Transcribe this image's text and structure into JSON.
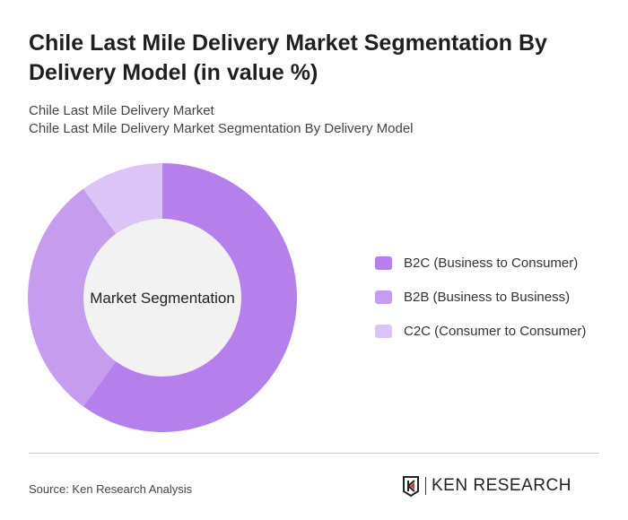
{
  "title": "Chile Last Mile Delivery Market Segmentation By Delivery Model (in value %)",
  "subtitle1": "Chile Last Mile Delivery Market",
  "subtitle2": "Chile Last Mile Delivery Market Segmentation By Delivery Model",
  "source": "Source: Ken Research Analysis",
  "logo_text": "KEN RESEARCH",
  "chart_data": {
    "type": "pie",
    "variant": "donut",
    "center_label": "Market Segmentation",
    "categories": [
      "B2C (Business to Consumer)",
      "B2B (Business to Business)",
      "C2C (Consumer to Consumer)"
    ],
    "values": [
      60,
      30,
      10
    ],
    "colors": [
      "#b580ec",
      "#c69dee",
      "#dcc4f6"
    ],
    "legend_position": "right"
  }
}
